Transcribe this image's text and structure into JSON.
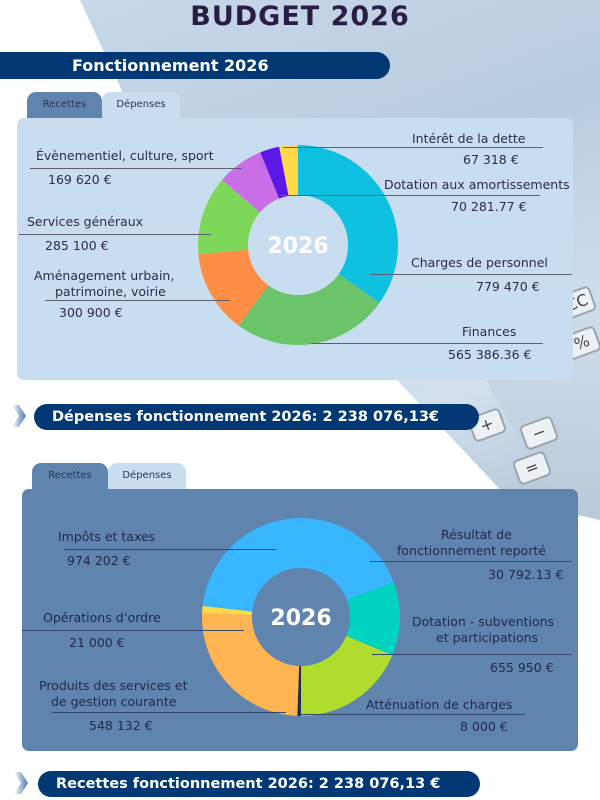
{
  "page": {
    "title": "BUDGET 2026",
    "section_title": "Fonctionnement 2026"
  },
  "depenses_panel": {
    "tabs": [
      {
        "label": "Recettes",
        "active": false
      },
      {
        "label": "Dépenses",
        "active": true
      }
    ],
    "center_label": "2026",
    "items": [
      {
        "label": "Intérêt de la dette",
        "value": "67 318 €",
        "color": "#fdd94a"
      },
      {
        "label": "Dotation aux amortissements",
        "value": "70 281.77 €",
        "color": "#5a17e6"
      },
      {
        "label": "Charges de personnel",
        "value": "779 470 €",
        "color": "#0ec1e0"
      },
      {
        "label": "Finances",
        "value": "565 386.36 €",
        "color": "#6cc46a"
      },
      {
        "label": "Évènementiel, culture, sport",
        "value": "169 620 €",
        "color": "#c96ee6"
      },
      {
        "label": "Services généraux",
        "value": "285 100 €",
        "color": "#7dd85a"
      },
      {
        "label": "Aménagement urbain,",
        "label2": "patrimoine, voirie",
        "value": "300 900 €",
        "color": "#fe8d45"
      }
    ],
    "total_label": "Dépenses fonctionnement 2026: 2 238 076,13€"
  },
  "recettes_panel": {
    "tabs": [
      {
        "label": "Recettes",
        "active": true
      },
      {
        "label": "Dépenses",
        "active": false
      }
    ],
    "center_label": "2026",
    "items": [
      {
        "label": "Impôts et taxes",
        "value": "974 202 €",
        "color": "#38b6ff"
      },
      {
        "label": "Opérations d’ordre",
        "value": "21 000 €",
        "color": "#fdd94a"
      },
      {
        "label": "Produits des services et",
        "label2": "de gestion courante",
        "value": "548 132 €",
        "color": "#ffb452"
      },
      {
        "label": "Résultat de",
        "label2": "fonctionnement reporté",
        "value": "30 792.13 €",
        "color": "#00d3c0"
      },
      {
        "label": "Dotation - subventions",
        "label2": "et participations",
        "value": "655 950 €",
        "color": "#b0dc2e"
      },
      {
        "label": "Atténuation de charges",
        "value": "8 000 €",
        "color": "#1f2f52"
      }
    ],
    "total_label": "Recettes fonctionnement 2026: 2 238 076,13 €"
  },
  "chart_data": [
    {
      "type": "pie",
      "title": "Dépenses fonctionnement 2026",
      "center_label": "2026",
      "categories": [
        "Charges de personnel",
        "Finances",
        "Aménagement urbain, patrimoine, voirie",
        "Services généraux",
        "Évènementiel, culture, sport",
        "Dotation aux amortissements",
        "Intérêt de la dette"
      ],
      "values": [
        779470,
        565386.36,
        300900,
        285100,
        169620,
        70281.77,
        67318
      ],
      "colors": [
        "#0ec1e0",
        "#6cc46a",
        "#fe8d45",
        "#7dd85a",
        "#c96ee6",
        "#5a17e6",
        "#fdd94a"
      ],
      "total": 2238076.13,
      "unit": "€"
    },
    {
      "type": "pie",
      "title": "Recettes fonctionnement 2026",
      "center_label": "2026",
      "categories": [
        "Atténuation de charges",
        "Produits des services et de gestion courante",
        "Opérations d’ordre",
        "Impôts et taxes",
        "Résultat de fonctionnement reporté",
        "Dotation - subventions et participations"
      ],
      "values": [
        8000,
        548132,
        21000,
        974202,
        30792.13,
        655950
      ],
      "colors": [
        "#1f2f52",
        "#ffb452",
        "#fdd94a",
        "#38b6ff",
        "#00d3c0",
        "#b0dc2e"
      ],
      "total": 2238076.13,
      "unit": "€"
    }
  ]
}
